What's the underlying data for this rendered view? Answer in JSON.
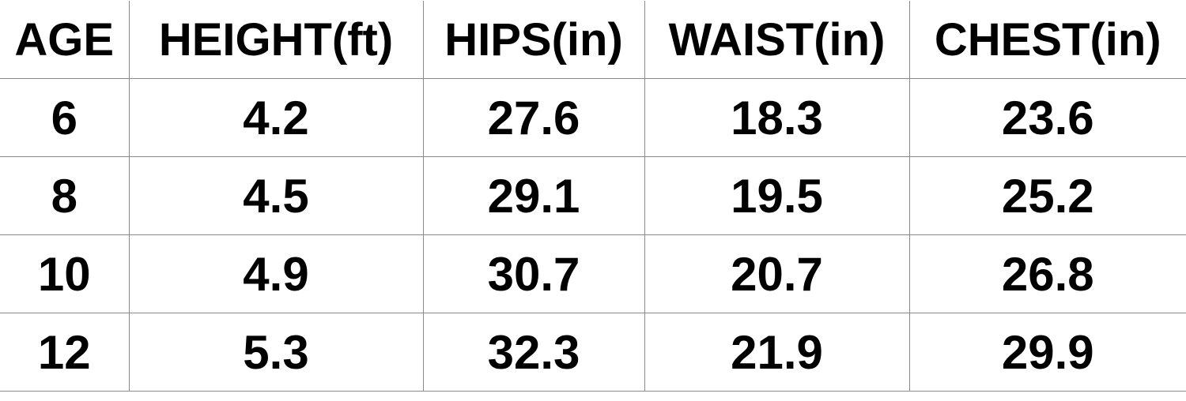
{
  "table": {
    "header": [
      "AGE",
      "HEIGHT(ft)",
      "HIPS(in)",
      "WAIST(in)",
      "CHEST(in)"
    ],
    "rows": [
      [
        "6",
        "4.2",
        "27.6",
        "18.3",
        "23.6"
      ],
      [
        "8",
        "4.5",
        "29.1",
        "19.5",
        "25.2"
      ],
      [
        "10",
        "4.9",
        "30.7",
        "20.7",
        "26.8"
      ],
      [
        "12",
        "5.3",
        "32.3",
        "21.9",
        "29.9"
      ]
    ]
  }
}
